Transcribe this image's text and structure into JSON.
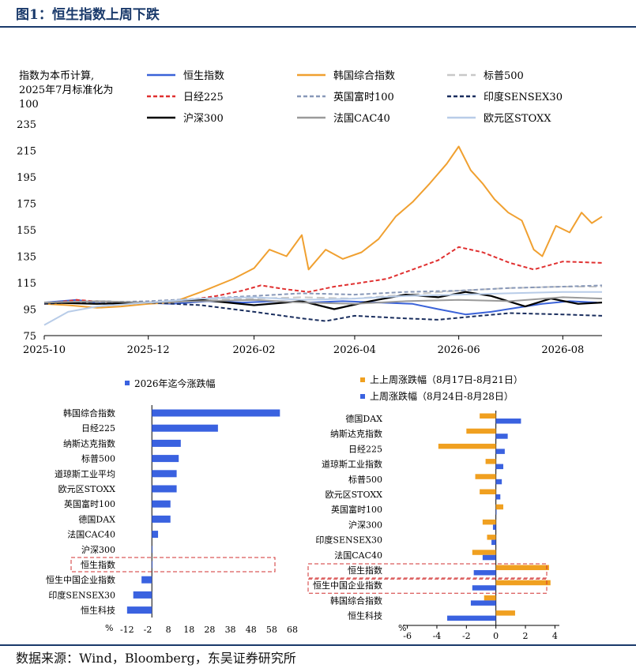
{
  "figure": {
    "title": "图1：恒生指数上周下跌",
    "source": "数据来源：Wind，Bloomberg，东吴证券研究所"
  },
  "chart_data": [
    {
      "type": "line",
      "note_lines": [
        "指数为本币计算,",
        "2025年7月标准化为",
        "100"
      ],
      "x_ticks": [
        "2025-10",
        "2025-12",
        "2026-02",
        "2026-04",
        "2026-06",
        "2026-08"
      ],
      "xlim": [
        "2025-10-01",
        "2026-08-24"
      ],
      "y_ticks": [
        75,
        95,
        115,
        135,
        155,
        175,
        195,
        215,
        235
      ],
      "ylim": [
        75,
        235
      ],
      "legend_position": "top",
      "series": [
        {
          "name": "恒生指数",
          "color": "#3a62d8",
          "dash": "solid",
          "points": [
            [
              "2025-10-01",
              100
            ],
            [
              "2025-10-20",
              102
            ],
            [
              "2025-11-05",
              99
            ],
            [
              "2025-11-25",
              100
            ],
            [
              "2025-12-15",
              99
            ],
            [
              "2026-01-05",
              101
            ],
            [
              "2026-01-25",
              100
            ],
            [
              "2026-02-15",
              101
            ],
            [
              "2026-03-05",
              100
            ],
            [
              "2026-03-25",
              101
            ],
            [
              "2026-04-15",
              100
            ],
            [
              "2026-05-05",
              99
            ],
            [
              "2026-05-20",
              95
            ],
            [
              "2026-06-05",
              91
            ],
            [
              "2026-06-20",
              93
            ],
            [
              "2026-07-05",
              96
            ],
            [
              "2026-07-20",
              99
            ],
            [
              "2026-08-05",
              101
            ],
            [
              "2026-08-21",
              100
            ]
          ]
        },
        {
          "name": "韩国综合指数",
          "color": "#f0a030",
          "dash": "solid",
          "points": [
            [
              "2025-10-01",
              99
            ],
            [
              "2025-10-15",
              98
            ],
            [
              "2025-11-01",
              96
            ],
            [
              "2025-11-15",
              97
            ],
            [
              "2025-12-01",
              99
            ],
            [
              "2025-12-15",
              100
            ],
            [
              "2026-01-01",
              108
            ],
            [
              "2026-01-20",
              118
            ],
            [
              "2026-02-01",
              126
            ],
            [
              "2026-02-10",
              140
            ],
            [
              "2026-02-20",
              135
            ],
            [
              "2026-03-01",
              151
            ],
            [
              "2026-03-05",
              125
            ],
            [
              "2026-03-15",
              140
            ],
            [
              "2026-03-25",
              133
            ],
            [
              "2026-04-05",
              138
            ],
            [
              "2026-04-15",
              148
            ],
            [
              "2026-04-25",
              165
            ],
            [
              "2026-05-05",
              176
            ],
            [
              "2026-05-15",
              190
            ],
            [
              "2026-05-25",
              205
            ],
            [
              "2026-06-01",
              218
            ],
            [
              "2026-06-08",
              200
            ],
            [
              "2026-06-15",
              190
            ],
            [
              "2026-06-22",
              178
            ],
            [
              "2026-06-30",
              168
            ],
            [
              "2026-07-08",
              162
            ],
            [
              "2026-07-15",
              140
            ],
            [
              "2026-07-20",
              135
            ],
            [
              "2026-07-28",
              158
            ],
            [
              "2026-08-05",
              153
            ],
            [
              "2026-08-12",
              168
            ],
            [
              "2026-08-18",
              160
            ],
            [
              "2026-08-24",
              165
            ]
          ]
        },
        {
          "name": "标普500",
          "color": "#c8c8c8",
          "dash": "long",
          "points": [
            [
              "2025-10-01",
              100
            ],
            [
              "2025-11-01",
              101
            ],
            [
              "2025-12-01",
              100
            ],
            [
              "2026-01-01",
              102
            ],
            [
              "2026-02-01",
              103
            ],
            [
              "2026-03-01",
              104
            ],
            [
              "2026-04-01",
              103
            ],
            [
              "2026-05-01",
              106
            ],
            [
              "2026-06-01",
              109
            ],
            [
              "2026-07-01",
              111
            ],
            [
              "2026-08-01",
              112
            ],
            [
              "2026-08-24",
              112
            ]
          ]
        },
        {
          "name": "日经225",
          "color": "#e03030",
          "dash": "short",
          "points": [
            [
              "2025-10-01",
              99
            ],
            [
              "2025-10-20",
              102
            ],
            [
              "2025-11-10",
              100
            ],
            [
              "2025-12-01",
              100
            ],
            [
              "2025-12-20",
              101
            ],
            [
              "2026-01-10",
              105
            ],
            [
              "2026-01-25",
              109
            ],
            [
              "2026-02-05",
              113
            ],
            [
              "2026-02-20",
              110
            ],
            [
              "2026-03-05",
              108
            ],
            [
              "2026-03-20",
              112
            ],
            [
              "2026-04-05",
              115
            ],
            [
              "2026-04-20",
              118
            ],
            [
              "2026-05-05",
              125
            ],
            [
              "2026-05-20",
              132
            ],
            [
              "2026-06-01",
              142
            ],
            [
              "2026-06-15",
              138
            ],
            [
              "2026-07-01",
              130
            ],
            [
              "2026-07-15",
              125
            ],
            [
              "2026-08-01",
              131
            ],
            [
              "2026-08-24",
              130
            ]
          ]
        },
        {
          "name": "英国富时100",
          "color": "#8898b8",
          "dash": "short",
          "points": [
            [
              "2025-10-01",
              100
            ],
            [
              "2025-11-01",
              100
            ],
            [
              "2025-12-01",
              101
            ],
            [
              "2026-01-01",
              103
            ],
            [
              "2026-02-01",
              105
            ],
            [
              "2026-03-01",
              107
            ],
            [
              "2026-04-01",
              106
            ],
            [
              "2026-05-01",
              108
            ],
            [
              "2026-06-01",
              109
            ],
            [
              "2026-07-01",
              111
            ],
            [
              "2026-08-01",
              112
            ],
            [
              "2026-08-24",
              113
            ]
          ]
        },
        {
          "name": "印度SENSEX30",
          "color": "#1a2e5e",
          "dash": "short",
          "points": [
            [
              "2025-10-01",
              99
            ],
            [
              "2025-11-01",
              101
            ],
            [
              "2025-12-01",
              100
            ],
            [
              "2026-01-01",
              98
            ],
            [
              "2026-02-01",
              93
            ],
            [
              "2026-03-01",
              88
            ],
            [
              "2026-03-15",
              86
            ],
            [
              "2026-04-01",
              90
            ],
            [
              "2026-05-01",
              88
            ],
            [
              "2026-05-20",
              87
            ],
            [
              "2026-06-05",
              89
            ],
            [
              "2026-07-01",
              92
            ],
            [
              "2026-08-01",
              91
            ],
            [
              "2026-08-24",
              90
            ]
          ]
        },
        {
          "name": "沪深300",
          "color": "#000000",
          "dash": "solid",
          "points": [
            [
              "2025-10-01",
              100
            ],
            [
              "2025-11-01",
              99
            ],
            [
              "2025-12-01",
              100
            ],
            [
              "2026-01-01",
              102
            ],
            [
              "2026-02-01",
              98
            ],
            [
              "2026-03-01",
              101
            ],
            [
              "2026-03-20",
              95
            ],
            [
              "2026-04-10",
              101
            ],
            [
              "2026-05-01",
              106
            ],
            [
              "2026-05-20",
              104
            ],
            [
              "2026-06-05",
              108
            ],
            [
              "2026-06-20",
              105
            ],
            [
              "2026-07-10",
              97
            ],
            [
              "2026-07-25",
              103
            ],
            [
              "2026-08-10",
              99
            ],
            [
              "2026-08-24",
              100
            ]
          ]
        },
        {
          "name": "法国CAC40",
          "color": "#9a9a9a",
          "dash": "solid",
          "points": [
            [
              "2025-10-01",
              100
            ],
            [
              "2025-11-01",
              101
            ],
            [
              "2025-12-01",
              100
            ],
            [
              "2026-01-01",
              101
            ],
            [
              "2026-02-01",
              102
            ],
            [
              "2026-03-01",
              100
            ],
            [
              "2026-04-01",
              99
            ],
            [
              "2026-05-01",
              101
            ],
            [
              "2026-06-01",
              102
            ],
            [
              "2026-07-01",
              101
            ],
            [
              "2026-08-01",
              104
            ],
            [
              "2026-08-24",
              103
            ]
          ]
        },
        {
          "name": "欧元区STOXX",
          "color": "#b8cce8",
          "dash": "solid",
          "points": [
            [
              "2025-10-01",
              83
            ],
            [
              "2025-10-15",
              93
            ],
            [
              "2025-11-01",
              97
            ],
            [
              "2025-12-01",
              100
            ],
            [
              "2026-01-01",
              103
            ],
            [
              "2026-02-01",
              104
            ],
            [
              "2026-03-01",
              102
            ],
            [
              "2026-04-01",
              103
            ],
            [
              "2026-05-01",
              105
            ],
            [
              "2026-06-01",
              106
            ],
            [
              "2026-07-01",
              107
            ],
            [
              "2026-08-01",
              108
            ],
            [
              "2026-08-24",
              108
            ]
          ]
        }
      ]
    },
    {
      "type": "bar",
      "orientation": "horizontal",
      "series_name": "2026年迄今涨跌幅",
      "color": "#3a62e0",
      "unit_label": "%",
      "x_ticks": [
        -12,
        -2,
        8,
        18,
        28,
        38,
        48,
        58,
        68
      ],
      "xlim": [
        -15,
        68
      ],
      "categories": [
        "韩国综合指数",
        "日经225",
        "纳斯达克指数",
        "标普500",
        "道琼斯工业平均",
        "欧元区STOXX",
        "英国富时100",
        "德国DAX",
        "法国CAC40",
        "沪深300",
        "恒生指数",
        "恒生中国企业指数",
        "印度SENSEX30",
        "恒生科技"
      ],
      "values": [
        62,
        32,
        14,
        13,
        12,
        12,
        9,
        9,
        3,
        0.2,
        0.2,
        -5,
        -9,
        -12
      ],
      "highlight": "恒生指数"
    },
    {
      "type": "bar",
      "orientation": "horizontal",
      "unit_label": "%",
      "x_ticks": [
        -6,
        -4,
        -2,
        0,
        2,
        4
      ],
      "xlim": [
        -6.3,
        4.3
      ],
      "categories": [
        "德国DAX",
        "纳斯达克指数",
        "日经225",
        "道琼斯工业指数",
        "标普500",
        "欧元区STOXX",
        "英国富时100",
        "沪深300",
        "印度SENSEX30",
        "法国CAC40",
        "恒生指数",
        "恒生中国企业指数",
        "韩国综合指数",
        "恒生科技"
      ],
      "series": [
        {
          "name": "上上周涨跌幅（8月17日-8月21日）",
          "color": "#f0a020",
          "values": [
            -1.1,
            -2.0,
            -3.9,
            -0.7,
            -1.4,
            -1.1,
            0.5,
            -0.9,
            -0.6,
            -1.6,
            3.6,
            3.7,
            -0.8,
            1.3
          ]
        },
        {
          "name": "上周涨跌幅（8月24日-8月28日）",
          "color": "#3a62e0",
          "values": [
            1.7,
            0.8,
            0.6,
            0.5,
            0.4,
            0.3,
            0.0,
            -0.2,
            -0.3,
            -0.9,
            -1.5,
            -1.6,
            -1.7,
            -3.3
          ]
        }
      ],
      "highlight": [
        "恒生指数",
        "恒生中国企业指数"
      ]
    }
  ]
}
